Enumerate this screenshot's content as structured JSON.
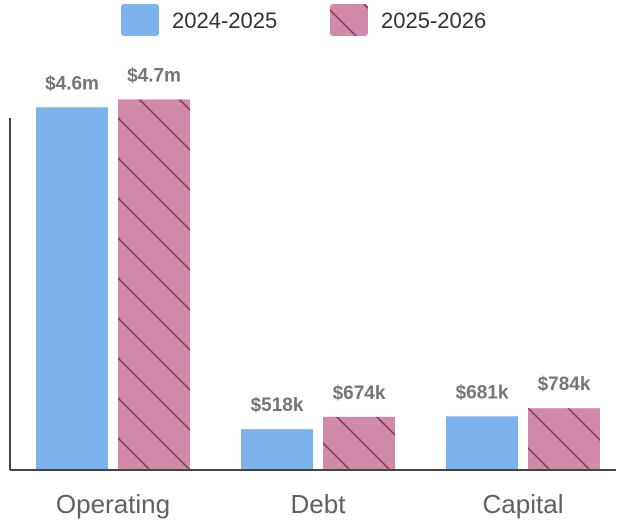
{
  "chart_data": {
    "type": "bar",
    "categories": [
      "Operating",
      "Debt",
      "Capital"
    ],
    "series": [
      {
        "name": "2024-2025",
        "values": [
          4600000,
          518000,
          681000
        ],
        "labels": [
          "$4.6m",
          "$518k",
          "$681k"
        ],
        "color": "#7cb3ec",
        "pattern": "solid"
      },
      {
        "name": "2025-2026",
        "values": [
          4700000,
          674000,
          784000
        ],
        "labels": [
          "$4.7m",
          "$674k",
          "$784k"
        ],
        "color": "#d18aa9",
        "pattern": "diagonal-hatch",
        "hatch_color": "#8a3a5c"
      }
    ],
    "ylim": [
      0,
      5200000
    ],
    "grid": false,
    "legend_position": "top-center",
    "axis_color": "#444444"
  }
}
